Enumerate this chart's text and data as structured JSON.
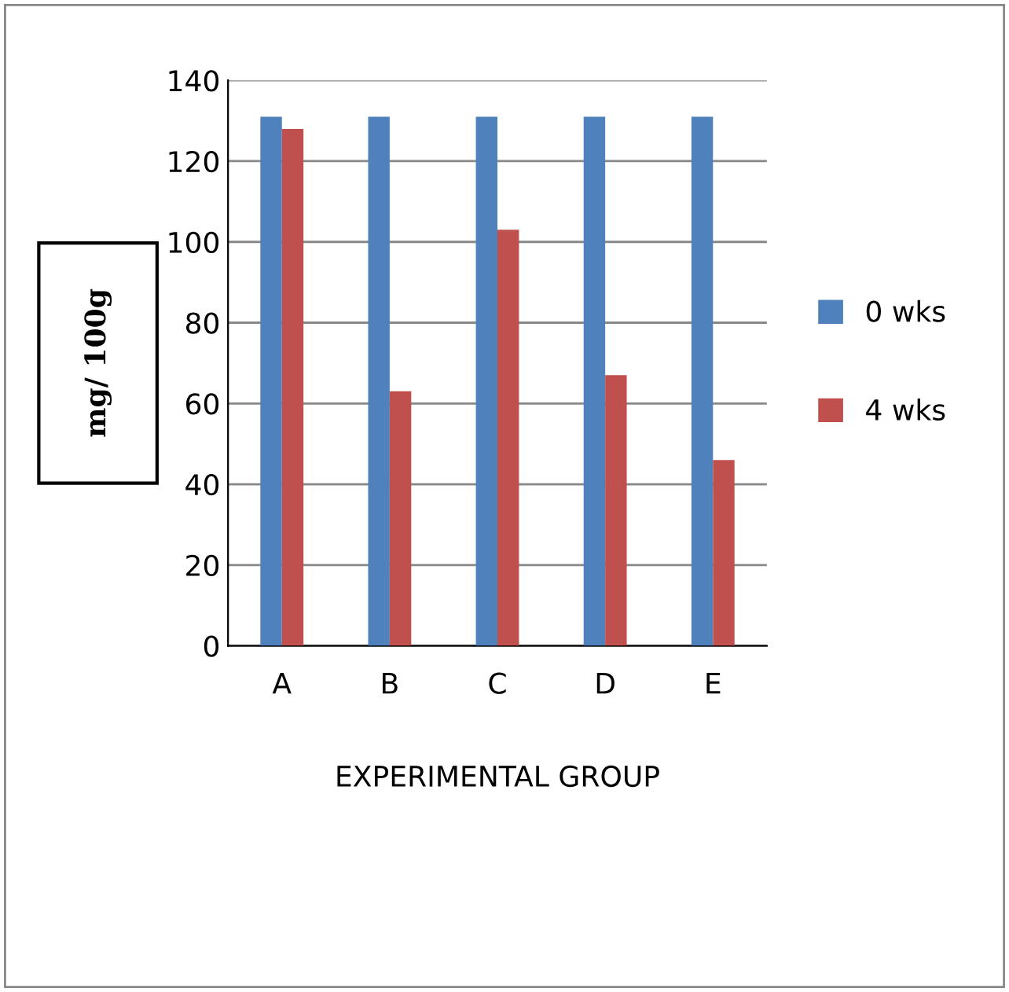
{
  "chart_data": {
    "type": "bar",
    "xlabel": "EXPERIMENTAL GROUP",
    "ylabel": "mg/ 100g",
    "categories": [
      "A",
      "B",
      "C",
      "D",
      "E"
    ],
    "series": [
      {
        "name": "0 wks",
        "color": "#4f81bd",
        "values": [
          131,
          131,
          131,
          131,
          131
        ]
      },
      {
        "name": "4 wks",
        "color": "#c0504d",
        "values": [
          128,
          63,
          103,
          67,
          46
        ]
      }
    ],
    "ylim": [
      0,
      140
    ],
    "yticks": [
      0,
      20,
      40,
      60,
      80,
      100,
      120,
      140
    ],
    "grid": "y",
    "legend": "right"
  }
}
